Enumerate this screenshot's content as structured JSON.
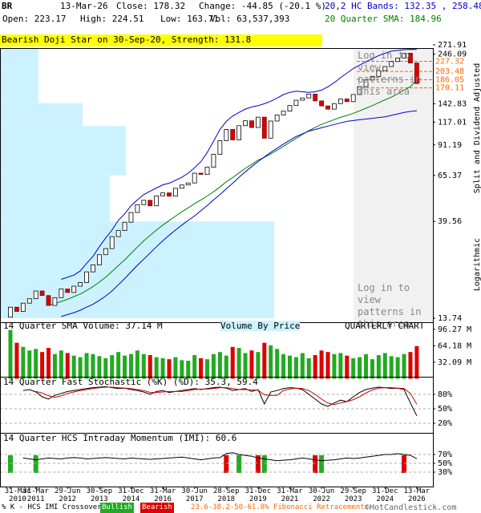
{
  "header": {
    "symbol": "BR",
    "date": "13-Mar-26",
    "close": "Close: 178.32",
    "change": "Change: -44.85 (-20.1 %)",
    "bands": "20,2 HC Bands: 132.35 , 258.48",
    "open": "Open: 223.17",
    "high": "High: 224.51",
    "low": "Low: 163.71",
    "volume": "Vol: 63,537,393",
    "sma": "20 Quarter SMA: 184.96",
    "banner": "Bearish Doji Star on 30-Sep-20, Strength: 131.8"
  },
  "chart_data": [
    {
      "type": "candlestick",
      "log_scale": true,
      "axis_label": "Split and Dividend Adjusted",
      "scale_label": "Logarithmic",
      "overlay_texts": [
        "Log in to view patterns in this area",
        "Log in to view patterns in this area"
      ],
      "ylim": [
        13.74,
        271.91
      ],
      "yticks": [
        271.91,
        246.09,
        142.83,
        117.01,
        91.19,
        65.37,
        39.56,
        13.74
      ],
      "up_color": "#ffffff",
      "down_color": "#dd0000",
      "open": [
        13.9,
        15.5,
        14.8,
        16.2,
        17.0,
        18.5,
        17.6,
        15.8,
        17.2,
        18.9,
        18.2,
        19.5,
        20.3,
        22.8,
        24.6,
        27.5,
        29.4,
        33.5,
        35.8,
        39.2,
        43.6,
        47.5,
        49.8,
        46.9,
        52.3,
        54.0,
        52.1,
        56.8,
        58.9,
        60.2,
        67.0,
        66.1,
        71.5,
        82.4,
        95.6,
        108.0,
        96.4,
        112.5,
        118.7,
        110.3,
        123.5,
        98.2,
        118.4,
        126.5,
        131.8,
        140.2,
        148.6,
        152.3,
        158.9,
        147.5,
        139.6,
        134.8,
        143.2,
        150.6,
        146.3,
        158.1,
        172.4,
        185.2,
        192.7,
        205.3,
        214.6,
        226.8,
        235.5,
        248.2,
        223.17
      ],
      "close": [
        15.5,
        14.8,
        16.2,
        17.0,
        18.5,
        17.6,
        15.8,
        17.2,
        18.9,
        18.2,
        19.5,
        20.3,
        22.8,
        24.6,
        27.5,
        29.4,
        33.5,
        35.8,
        39.2,
        43.6,
        47.5,
        49.8,
        46.9,
        52.3,
        54.0,
        52.1,
        56.8,
        58.9,
        60.2,
        67.0,
        66.1,
        71.5,
        82.4,
        95.6,
        108.0,
        96.4,
        112.5,
        118.7,
        110.3,
        123.5,
        98.2,
        118.4,
        126.5,
        131.8,
        140.2,
        148.6,
        152.3,
        158.9,
        147.5,
        139.6,
        134.8,
        143.2,
        150.6,
        146.3,
        158.1,
        172.4,
        185.2,
        192.7,
        205.3,
        214.6,
        226.8,
        235.5,
        248.2,
        223.2,
        178.32
      ],
      "sma": {
        "color": "#008000",
        "values": [
          null,
          null,
          null,
          null,
          null,
          null,
          15.8,
          16.1,
          16.5,
          16.9,
          17.4,
          17.9,
          18.6,
          19.4,
          20.4,
          21.5,
          22.9,
          24.4,
          26.0,
          27.9,
          29.9,
          32.0,
          33.9,
          36.0,
          38.0,
          39.9,
          41.9,
          43.9,
          45.9,
          48.0,
          50.0,
          52.2,
          54.7,
          57.6,
          61.0,
          63.8,
          67.2,
          70.6,
          73.7,
          77.3,
          79.6,
          82.6,
          86.1,
          89.8,
          93.8,
          98.0,
          102.3,
          106.6,
          110.5,
          114.1,
          117.1,
          120.3,
          123.2,
          125.8,
          128.9,
          132.3,
          136.2,
          140.0,
          144.7,
          149.3,
          153.6,
          159.2,
          166.0,
          172.5,
          184.96
        ]
      },
      "bands": {
        "color": "#0000cc",
        "upper": [
          null,
          null,
          null,
          null,
          null,
          null,
          null,
          null,
          21,
          21.5,
          22,
          23,
          25,
          27,
          30,
          33,
          36,
          40,
          43,
          47,
          50,
          53,
          55,
          57,
          59,
          60,
          62,
          64,
          67,
          71,
          76,
          84,
          95,
          108,
          118,
          125,
          130,
          135,
          138,
          140,
          143,
          147,
          152,
          158,
          162,
          164,
          163,
          162,
          163,
          166,
          172,
          180,
          190,
          200,
          210,
          218,
          226,
          234,
          242,
          248,
          254,
          256,
          258,
          259,
          258.48
        ],
        "lower": [
          null,
          null,
          null,
          null,
          null,
          null,
          null,
          null,
          14,
          14.3,
          14.6,
          15,
          15.5,
          16,
          16.7,
          17.5,
          18.5,
          19.8,
          21.2,
          22.8,
          24.5,
          26.2,
          28,
          30,
          32,
          34,
          36,
          38,
          40,
          42,
          44.5,
          47,
          50,
          53,
          56.5,
          60,
          64,
          68,
          72,
          76,
          80,
          84,
          88,
          92,
          96,
          100,
          103,
          106,
          108,
          110,
          112,
          114,
          116,
          118,
          119,
          120,
          121,
          122,
          123,
          124,
          126,
          128,
          130,
          131.5,
          132.35
        ]
      },
      "fibonacci": {
        "color": "#ff6600",
        "values": [
          227.32,
          203.48,
          186.05,
          170.11
        ]
      },
      "volume_by_price": {
        "color": "#ccf2ff",
        "xlim": [
          0,
          540
        ],
        "bins": [
          13.74,
          39.56,
          65.37,
          112,
          144,
          205,
          271.91
        ],
        "values": [
          342,
          137,
          157,
          103,
          48,
          48
        ]
      }
    },
    {
      "type": "bar",
      "title": "14 Quarter SMA Volume: 37.14 M",
      "label": "Volume By Price",
      "note": "QUARTERLY CHART",
      "up_color": "#22aa22",
      "down_color": "#dd0000",
      "ylim": [
        0,
        110
      ],
      "yticks": [
        {
          "value": 96.27,
          "label": "96.27 M"
        },
        {
          "value": 64.18,
          "label": "64.18 M"
        },
        {
          "value": 32.09,
          "label": "32.09 M"
        }
      ],
      "values": [
        95,
        70,
        62,
        55,
        58,
        52,
        60,
        48,
        55,
        50,
        45,
        42,
        50,
        48,
        44,
        40,
        46,
        52,
        45,
        48,
        55,
        48,
        46,
        42,
        40,
        38,
        42,
        36,
        35,
        46,
        40,
        38,
        48,
        52,
        45,
        62,
        60,
        50,
        55,
        52,
        70,
        65,
        58,
        48,
        45,
        42,
        50,
        40,
        46,
        55,
        52,
        48,
        50,
        45,
        40,
        42,
        48,
        38,
        46,
        50,
        44,
        42,
        48,
        52,
        63.54
      ]
    },
    {
      "type": "line",
      "title": "14 Quarter Fast Stochastic (%K) (%D): 35.3, 59.4",
      "grid": true,
      "ylim": [
        0,
        100
      ],
      "yticks": [
        {
          "value": 80,
          "label": "80%"
        },
        {
          "value": 50,
          "label": "50%"
        },
        {
          "value": 20,
          "label": "20%"
        }
      ],
      "series": [
        {
          "color": "#000000",
          "values": [
            null,
            null,
            88,
            90,
            85,
            75,
            70,
            78,
            82,
            86,
            88,
            90,
            92,
            94,
            95,
            96,
            94,
            92,
            93,
            90,
            88,
            85,
            80,
            86,
            88,
            84,
            86,
            88,
            90,
            92,
            90,
            92,
            94,
            95,
            93,
            88,
            90,
            92,
            86,
            90,
            60,
            85,
            88,
            92,
            94,
            93,
            90,
            80,
            70,
            60,
            55,
            62,
            68,
            65,
            75,
            84,
            90,
            93,
            95,
            94,
            92,
            93,
            90,
            62,
            35.3
          ]
        },
        {
          "color": "#cc0000",
          "values": [
            null,
            null,
            null,
            null,
            86,
            83,
            77,
            74,
            77,
            82,
            85,
            88,
            90,
            92,
            94,
            95,
            95,
            94,
            93,
            92,
            90,
            88,
            84,
            84,
            85,
            86,
            86,
            86,
            88,
            90,
            91,
            91,
            92,
            94,
            94,
            92,
            90,
            90,
            89,
            89,
            79,
            78,
            78,
            88,
            91,
            93,
            92,
            88,
            80,
            70,
            62,
            59,
            62,
            65,
            69,
            75,
            83,
            89,
            93,
            94,
            94,
            93,
            92,
            82,
            59.4
          ]
        }
      ]
    },
    {
      "type": "line",
      "title": "14 Quarter HCS Intraday Momentum (IMI): 60.6",
      "grid": true,
      "ylim": [
        0,
        100
      ],
      "color": "#000000",
      "yticks": [
        {
          "value": 70,
          "label": "70%"
        },
        {
          "value": 50,
          "label": "50%"
        },
        {
          "value": 30,
          "label": "30%"
        }
      ],
      "values": [
        null,
        null,
        62,
        60,
        58,
        60,
        62,
        61,
        60,
        62,
        63,
        62,
        60,
        61,
        62,
        63,
        62,
        61,
        60,
        62,
        61,
        60,
        59,
        60,
        61,
        62,
        63,
        64,
        62,
        60,
        58,
        60,
        62,
        63,
        72,
        74,
        70,
        68,
        66,
        62,
        60,
        58,
        56,
        57,
        58,
        60,
        62,
        60,
        58,
        56,
        57,
        58,
        60,
        62,
        61,
        62,
        64,
        66,
        68,
        70,
        70,
        72,
        70,
        68,
        60.6
      ],
      "bullish_color": "#22aa22",
      "bearish_color": "#dd0000",
      "crossover": [
        "bullish",
        null,
        null,
        null,
        "bullish",
        null,
        null,
        null,
        null,
        null,
        null,
        null,
        null,
        null,
        null,
        null,
        null,
        null,
        null,
        null,
        null,
        null,
        null,
        null,
        null,
        null,
        null,
        null,
        null,
        null,
        null,
        null,
        null,
        null,
        "bearish",
        null,
        "bullish",
        null,
        null,
        "bearish",
        "bullish",
        null,
        null,
        null,
        null,
        null,
        null,
        null,
        "bearish",
        "bullish",
        null,
        null,
        null,
        null,
        null,
        null,
        null,
        null,
        null,
        null,
        null,
        null,
        "bearish",
        null,
        null
      ],
      "categories": [
        "31-Mar 2010",
        null,
        null,
        null,
        "31-Mar 2011",
        null,
        null,
        null,
        null,
        "29-Jun 2012",
        null,
        null,
        null,
        null,
        "30-Sep 2013",
        null,
        null,
        null,
        null,
        "31-Dec 2014",
        null,
        null,
        null,
        null,
        "31-Mar 2016",
        null,
        null,
        null,
        null,
        "30-Jun 2017",
        null,
        null,
        null,
        null,
        "28-Sep 2018",
        null,
        null,
        null,
        null,
        "31-Dec 2019",
        null,
        null,
        null,
        null,
        "31-Mar 2021",
        null,
        null,
        null,
        null,
        "30-Jun 2022",
        null,
        null,
        null,
        null,
        "29-Sep 2023",
        null,
        null,
        null,
        null,
        "31-Dec 2024",
        null,
        null,
        null,
        null,
        "13-Mar 2026"
      ]
    }
  ],
  "footer": {
    "legend": "% K - HCS IMI Crossover,",
    "bullish": "Bullish",
    "bearish": "Bearish",
    "fib_note": "23.6-38.2-50-61.8% Fibonacci Retracements",
    "credit": "©HotCandlestick.com"
  }
}
